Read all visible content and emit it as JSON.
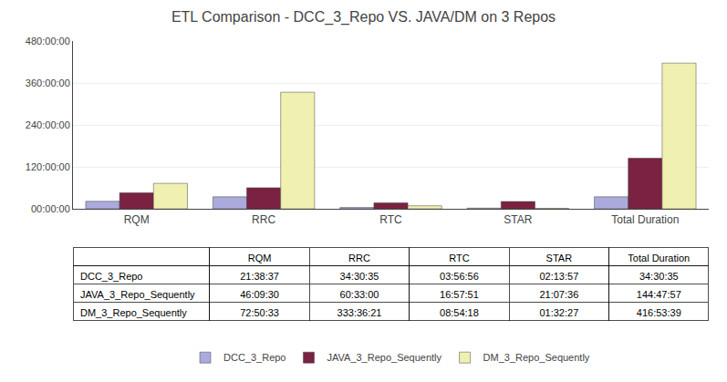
{
  "chart_data": {
    "type": "bar",
    "title": "ETL Comparison - DCC_3_Repo VS. JAVA/DM on 3 Repos",
    "categories": [
      "RQM",
      "RRC",
      "RTC",
      "STAR",
      "Total Duration"
    ],
    "series": [
      {
        "name": "DCC_3_Repo",
        "color": "#aaaadd",
        "values": [
          21.6436,
          34.5097,
          3.9489,
          2.2325,
          34.5097
        ],
        "value_labels": [
          "21:38:37",
          "34:30:35",
          "03:56:56",
          "02:13:57",
          "34:30:35"
        ]
      },
      {
        "name": "JAVA_3_Repo_Sequently",
        "color": "#7b2142",
        "values": [
          46.1583,
          60.55,
          16.9642,
          21.1267,
          144.7992
        ],
        "value_labels": [
          "46:09:30",
          "60:33:00",
          "16:57:51",
          "21:07:36",
          "144:47:57"
        ]
      },
      {
        "name": "DM_3_Repo_Sequently",
        "color": "#f0f0b0",
        "values": [
          72.8425,
          333.6058,
          8.905,
          1.5408,
          416.8942
        ],
        "value_labels": [
          "72:50:33",
          "333:36:21",
          "08:54:18",
          "01:32:27",
          "416:53:39"
        ]
      }
    ],
    "ylim": [
      0,
      480
    ],
    "yticks": [
      {
        "value": 0,
        "label": "00:00:00"
      },
      {
        "value": 120,
        "label": "120:00:00"
      },
      {
        "value": 240,
        "label": "240:00:00"
      },
      {
        "value": 360,
        "label": "360:00:00"
      },
      {
        "value": 480,
        "label": "480:00:00"
      }
    ],
    "grid": true,
    "legend": "bottom"
  }
}
